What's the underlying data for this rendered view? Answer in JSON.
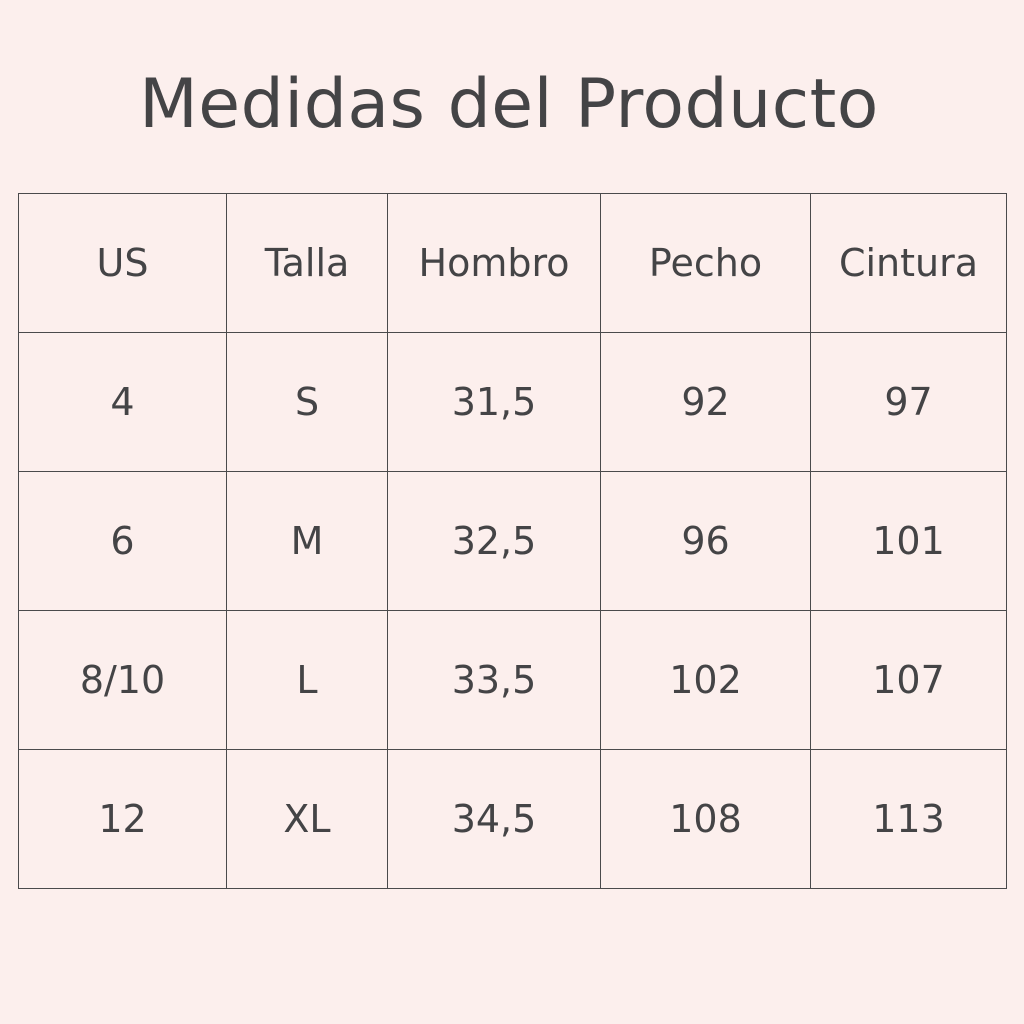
{
  "title": "Medidas del Producto",
  "table": {
    "headers": [
      "US",
      "Talla",
      "Hombro",
      "Pecho",
      "Cintura"
    ],
    "rows": [
      [
        "4",
        "S",
        "31,5",
        "92",
        "97"
      ],
      [
        "6",
        "M",
        "32,5",
        "96",
        "101"
      ],
      [
        "8/10",
        "L",
        "33,5",
        "102",
        "107"
      ],
      [
        "12",
        "XL",
        "34,5",
        "108",
        "113"
      ]
    ]
  },
  "colors": {
    "background": "#fcefed",
    "text": "#444446",
    "border": "#4a4a4c"
  }
}
